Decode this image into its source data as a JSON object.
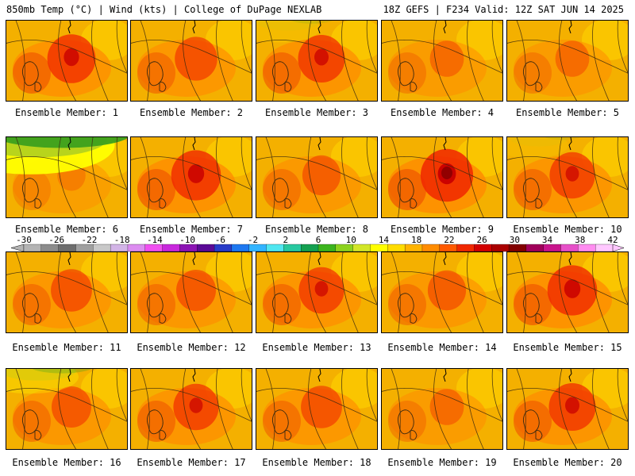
{
  "header": {
    "left": "850mb Temp (°C) | Wind (kts) | College of DuPage NEXLAB",
    "right": "18Z GEFS | F234 Valid: 12Z SAT JUN 14 2025"
  },
  "members": [
    {
      "label": "Ensemble Member: 1",
      "hot": 0.8,
      "cool": 0.0
    },
    {
      "label": "Ensemble Member: 2",
      "hot": 0.6,
      "cool": 0.0
    },
    {
      "label": "Ensemble Member: 3",
      "hot": 0.75,
      "cool": 0.15
    },
    {
      "label": "Ensemble Member: 4",
      "hot": 0.3,
      "cool": 0.0
    },
    {
      "label": "Ensemble Member: 5",
      "hot": 0.3,
      "cool": 0.0
    },
    {
      "label": "Ensemble Member: 6",
      "hot": 0.1,
      "cool": 0.95
    },
    {
      "label": "Ensemble Member: 7",
      "hot": 0.85,
      "cool": 0.0
    },
    {
      "label": "Ensemble Member: 8",
      "hot": 0.45,
      "cool": 0.0
    },
    {
      "label": "Ensemble Member: 9",
      "hot": 0.95,
      "cool": 0.0
    },
    {
      "label": "Ensemble Member: 10",
      "hot": 0.7,
      "cool": 0.1
    },
    {
      "label": "Ensemble Member: 11",
      "hot": 0.55,
      "cool": 0.0
    },
    {
      "label": "Ensemble Member: 12",
      "hot": 0.5,
      "cool": 0.0
    },
    {
      "label": "Ensemble Member: 13",
      "hot": 0.7,
      "cool": 0.0
    },
    {
      "label": "Ensemble Member: 14",
      "hot": 0.45,
      "cool": 0.0
    },
    {
      "label": "Ensemble Member: 15",
      "hot": 0.85,
      "cool": 0.0
    },
    {
      "label": "Ensemble Member: 16",
      "hot": 0.5,
      "cool": 0.3
    },
    {
      "label": "Ensemble Member: 17",
      "hot": 0.7,
      "cool": 0.0
    },
    {
      "label": "Ensemble Member: 18",
      "hot": 0.55,
      "cool": 0.0
    },
    {
      "label": "Ensemble Member: 19",
      "hot": 0.3,
      "cool": 0.0
    },
    {
      "label": "Ensemble Member: 20",
      "hot": 0.75,
      "cool": 0.0
    }
  ],
  "colorbar": {
    "ticks": [
      -30,
      -26,
      -22,
      -18,
      -14,
      -10,
      -6,
      -2,
      2,
      6,
      10,
      14,
      18,
      22,
      26,
      30,
      34,
      38,
      42
    ],
    "colors": [
      "#b4b4b4",
      "#8c8c8c",
      "#6e6e6e",
      "#a0a0a0",
      "#c8c8c8",
      "#d2b4e6",
      "#dc8cf0",
      "#f050f0",
      "#c828dc",
      "#8c14b4",
      "#5a0a96",
      "#283cc8",
      "#1e78f0",
      "#32b4ff",
      "#50e6f0",
      "#28c8a0",
      "#14a050",
      "#3cb41e",
      "#8cd21e",
      "#d2e628",
      "#ffff00",
      "#ffdc00",
      "#ffb400",
      "#ff8c00",
      "#ff5a00",
      "#f02800",
      "#d20000",
      "#aa0000",
      "#820000",
      "#a0005a",
      "#c8148c",
      "#e650c8",
      "#ff8cf0",
      "#ffc8ff"
    ]
  }
}
